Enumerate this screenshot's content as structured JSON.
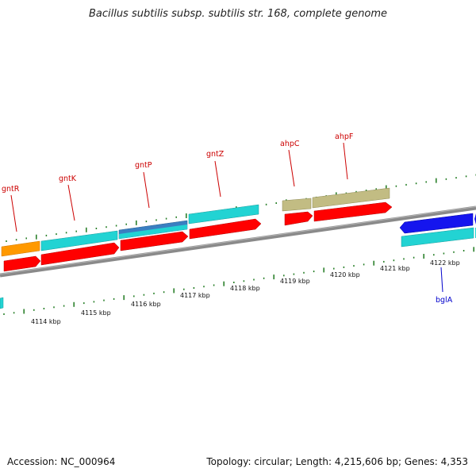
{
  "title": "Bacillus subtilis subsp. subtilis str. 168, complete genome",
  "footer": {
    "accession": "Accession: NC_000964",
    "summary": "Topology: circular; Length: 4,215,606 bp; Genes: 4,353"
  },
  "colors": {
    "backbone": "#8a8a8a",
    "tick": "#1f7a1f",
    "cds": "#ff0000",
    "cyan_gene": "#22d3d3",
    "orange_gene": "#ff9900",
    "steel_gene": "#3a7fc1",
    "olive_gene": "#c2bc83",
    "blue_gene": "#1515ee",
    "forward_label": "#cc0000",
    "reverse_label": "#0000cc"
  },
  "scale": {
    "unit": "kbp",
    "labels": [
      "4114 kbp",
      "4115 kbp",
      "4116 kbp",
      "4117 kbp",
      "4118 kbp",
      "4119 kbp",
      "4120 kbp",
      "4121 kbp",
      "4122 kbp"
    ]
  },
  "genes": {
    "forward": [
      "gntR",
      "gntK",
      "gntP",
      "gntZ",
      "ahpC",
      "ahpF"
    ],
    "reverse": [
      "bglA"
    ]
  }
}
